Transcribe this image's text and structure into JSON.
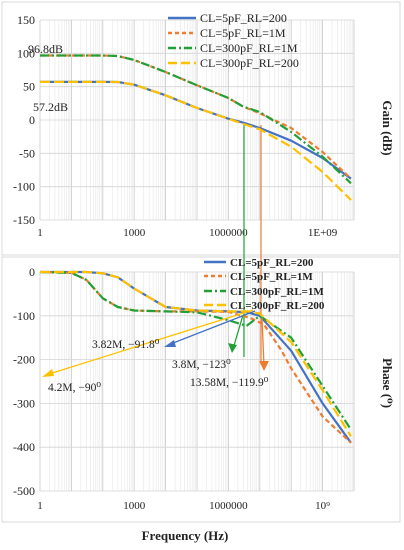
{
  "chart_data": [
    {
      "type": "line",
      "ylabel": "Gain (dB)",
      "xscale": "log",
      "xlim": [
        1,
        10000000000
      ],
      "ylim": [
        -150,
        150
      ],
      "grid": true,
      "legend": "top-right",
      "x_tick_labels": [
        "1",
        "1000",
        "1000000",
        "1E+09"
      ],
      "y_tick_labels": [
        "150",
        "100",
        "50",
        "0",
        "-50",
        "-100",
        "-150"
      ],
      "annotations": [
        "96.8dB",
        "57.2dB"
      ],
      "series": [
        {
          "name": "CL=5pF_RL=200",
          "color": "#4472c4",
          "dash": "solid",
          "x": [
            1,
            100,
            300,
            1000,
            10000,
            100000,
            1000000,
            3000000,
            10000000,
            100000000,
            1000000000,
            8000000000
          ],
          "y": [
            57.2,
            57.2,
            57,
            53,
            37,
            18,
            2,
            -4,
            -12,
            -31,
            -57,
            -88
          ]
        },
        {
          "name": "CL=5pF_RL=1M",
          "color": "#ed7d31",
          "dash": "dashed",
          "x": [
            1,
            100,
            300,
            1000,
            10000,
            100000,
            1000000,
            3000000,
            10000000,
            100000000,
            1000000000,
            8000000000
          ],
          "y": [
            96.8,
            96.8,
            96,
            90,
            72,
            52,
            33,
            20,
            10,
            -12,
            -48,
            -88
          ]
        },
        {
          "name": "CL=300pF_RL=1M",
          "color": "#22a038",
          "dash": "dashdot",
          "x": [
            1,
            100,
            300,
            1000,
            10000,
            100000,
            1000000,
            3000000,
            10000000,
            100000000,
            1000000000,
            8000000000
          ],
          "y": [
            96.8,
            96.8,
            96,
            90,
            72,
            52,
            33,
            20,
            12,
            -18,
            -55,
            -95
          ]
        },
        {
          "name": "CL=300pF_RL=200",
          "color": "#ffc000",
          "dash": "longdash",
          "x": [
            1,
            100,
            300,
            1000,
            10000,
            100000,
            1000000,
            3000000,
            10000000,
            100000000,
            1000000000,
            8000000000
          ],
          "y": [
            57.2,
            57.2,
            57,
            53,
            37,
            18,
            2,
            -6,
            -14,
            -40,
            -78,
            -120
          ]
        }
      ]
    },
    {
      "type": "line",
      "xlabel": "Frequency (Hz)",
      "ylabel": "Phase (⁰)",
      "xscale": "log",
      "xlim": [
        1,
        10000000000
      ],
      "ylim": [
        -500,
        0
      ],
      "grid": true,
      "legend": "top-right",
      "x_tick_labels": [
        "1",
        "1000",
        "1000000",
        "10⁹"
      ],
      "y_tick_labels": [
        "0",
        "-100",
        "-200",
        "-300",
        "-400",
        "-500"
      ],
      "series": [
        {
          "name": "CL=5pF_RL=200",
          "color": "#4472c4",
          "dash": "solid",
          "x": [
            1,
            30,
            100,
            300,
            1000,
            10000,
            100000,
            1000000,
            3820000,
            10000000,
            100000000,
            1000000000,
            8000000000
          ],
          "y": [
            0,
            0,
            -3,
            -12,
            -38,
            -80,
            -88,
            -90,
            -91.8,
            -100,
            -180,
            -300,
            -390
          ]
        },
        {
          "name": "CL=5pF_RL=1M",
          "color": "#ed7d31",
          "dash": "dashed",
          "x": [
            1,
            10,
            30,
            100,
            300,
            1000,
            10000,
            100000,
            1000000,
            5000000,
            13580000,
            50000000,
            100000000,
            1000000000,
            8000000000
          ],
          "y": [
            0,
            -2,
            -18,
            -60,
            -80,
            -88,
            -90,
            -90,
            -91,
            -105,
            -119.9,
            -180,
            -220,
            -330,
            -390
          ]
        },
        {
          "name": "CL=300pF_RL=1M",
          "color": "#22a038",
          "dash": "dashdot",
          "x": [
            1,
            10,
            30,
            100,
            300,
            1000,
            10000,
            100000,
            1000000,
            3800000,
            10000000,
            100000000,
            1000000000,
            8000000000
          ],
          "y": [
            0,
            -2,
            -18,
            -60,
            -80,
            -88,
            -90,
            -92,
            -110,
            -123,
            -100,
            -150,
            -260,
            -360
          ]
        },
        {
          "name": "CL=300pF_RL=200",
          "color": "#ffc000",
          "dash": "longdash",
          "x": [
            1,
            30,
            100,
            300,
            1000,
            10000,
            100000,
            1000000,
            4200000,
            10000000,
            100000000,
            1000000000,
            8000000000
          ],
          "y": [
            0,
            0,
            -3,
            -12,
            -38,
            -80,
            -88,
            -90,
            -90,
            -95,
            -160,
            -270,
            -375
          ]
        }
      ],
      "annotations": [
        {
          "text": "3.82M, −91.8⁰",
          "color": "#4472c4"
        },
        {
          "text": "3.8M, −123⁰",
          "color": "#22a038"
        },
        {
          "text": "13.58M, −119.9⁰",
          "color": "#ed7d31"
        },
        {
          "text": "4.2M, −90⁰",
          "color": "#ffc000"
        }
      ]
    }
  ]
}
